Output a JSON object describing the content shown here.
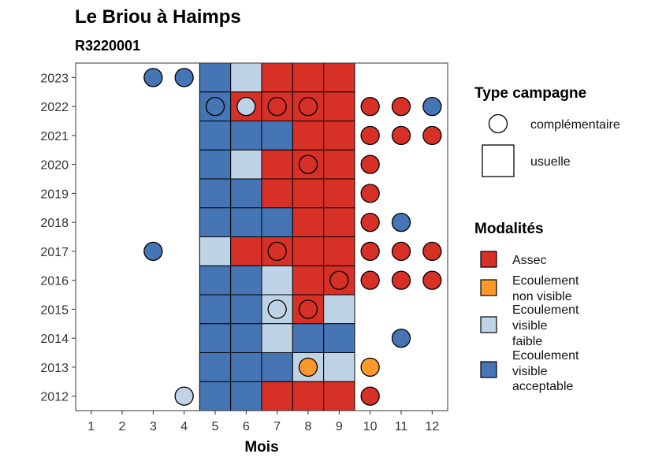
{
  "chart_data": {
    "type": "heatmap",
    "title": "Le Briou à Haimps",
    "subtitle": "R3220001",
    "xlabel": "Mois",
    "ylabel": "",
    "x_ticks": [
      "1",
      "2",
      "3",
      "4",
      "5",
      "6",
      "7",
      "8",
      "9",
      "10",
      "11",
      "12"
    ],
    "y_ticks": [
      "2012",
      "2013",
      "2014",
      "2015",
      "2016",
      "2017",
      "2018",
      "2019",
      "2020",
      "2021",
      "2022",
      "2023"
    ],
    "xlim": [
      0.5,
      12.5
    ],
    "ylim": [
      2011.5,
      2023.5
    ],
    "colors": {
      "Assec": "#d73027",
      "Ecoulement non visible": "#fe9929",
      "Ecoulement visible faible": "#bfd3e6",
      "Ecoulement visible acceptable": "#4575b4"
    },
    "legend": {
      "type_title": "Type campagne",
      "type_items": [
        {
          "label": "complémentaire",
          "shape": "circle"
        },
        {
          "label": "usuelle",
          "shape": "square"
        }
      ],
      "modalites_title": "Modalités",
      "modalites_items": [
        {
          "key": "Assec",
          "lines": [
            "Assec"
          ]
        },
        {
          "key": "Ecoulement non visible",
          "lines": [
            "Ecoulement",
            "non visible"
          ]
        },
        {
          "key": "Ecoulement visible faible",
          "lines": [
            "Ecoulement",
            "visible",
            "faible"
          ]
        },
        {
          "key": "Ecoulement visible acceptable",
          "lines": [
            "Ecoulement",
            "visible",
            "acceptable"
          ]
        }
      ]
    },
    "usuelle": [
      {
        "year": 2023,
        "month": 5,
        "modalite": "Ecoulement visible acceptable"
      },
      {
        "year": 2023,
        "month": 6,
        "modalite": "Ecoulement visible faible"
      },
      {
        "year": 2023,
        "month": 7,
        "modalite": "Assec"
      },
      {
        "year": 2023,
        "month": 8,
        "modalite": "Assec"
      },
      {
        "year": 2023,
        "month": 9,
        "modalite": "Assec"
      },
      {
        "year": 2022,
        "month": 5,
        "modalite": "Ecoulement visible acceptable"
      },
      {
        "year": 2022,
        "month": 6,
        "modalite": "Assec"
      },
      {
        "year": 2022,
        "month": 7,
        "modalite": "Assec"
      },
      {
        "year": 2022,
        "month": 8,
        "modalite": "Assec"
      },
      {
        "year": 2022,
        "month": 9,
        "modalite": "Assec"
      },
      {
        "year": 2021,
        "month": 5,
        "modalite": "Ecoulement visible acceptable"
      },
      {
        "year": 2021,
        "month": 6,
        "modalite": "Ecoulement visible acceptable"
      },
      {
        "year": 2021,
        "month": 7,
        "modalite": "Ecoulement visible acceptable"
      },
      {
        "year": 2021,
        "month": 8,
        "modalite": "Assec"
      },
      {
        "year": 2021,
        "month": 9,
        "modalite": "Assec"
      },
      {
        "year": 2020,
        "month": 5,
        "modalite": "Ecoulement visible acceptable"
      },
      {
        "year": 2020,
        "month": 6,
        "modalite": "Ecoulement visible faible"
      },
      {
        "year": 2020,
        "month": 7,
        "modalite": "Assec"
      },
      {
        "year": 2020,
        "month": 8,
        "modalite": "Assec"
      },
      {
        "year": 2020,
        "month": 9,
        "modalite": "Assec"
      },
      {
        "year": 2019,
        "month": 5,
        "modalite": "Ecoulement visible acceptable"
      },
      {
        "year": 2019,
        "month": 6,
        "modalite": "Ecoulement visible acceptable"
      },
      {
        "year": 2019,
        "month": 7,
        "modalite": "Assec"
      },
      {
        "year": 2019,
        "month": 8,
        "modalite": "Assec"
      },
      {
        "year": 2019,
        "month": 9,
        "modalite": "Assec"
      },
      {
        "year": 2018,
        "month": 5,
        "modalite": "Ecoulement visible acceptable"
      },
      {
        "year": 2018,
        "month": 6,
        "modalite": "Ecoulement visible acceptable"
      },
      {
        "year": 2018,
        "month": 7,
        "modalite": "Ecoulement visible acceptable"
      },
      {
        "year": 2018,
        "month": 8,
        "modalite": "Assec"
      },
      {
        "year": 2018,
        "month": 9,
        "modalite": "Assec"
      },
      {
        "year": 2017,
        "month": 5,
        "modalite": "Ecoulement visible faible"
      },
      {
        "year": 2017,
        "month": 6,
        "modalite": "Assec"
      },
      {
        "year": 2017,
        "month": 7,
        "modalite": "Assec"
      },
      {
        "year": 2017,
        "month": 8,
        "modalite": "Assec"
      },
      {
        "year": 2017,
        "month": 9,
        "modalite": "Assec"
      },
      {
        "year": 2016,
        "month": 5,
        "modalite": "Ecoulement visible acceptable"
      },
      {
        "year": 2016,
        "month": 6,
        "modalite": "Ecoulement visible acceptable"
      },
      {
        "year": 2016,
        "month": 7,
        "modalite": "Ecoulement visible faible"
      },
      {
        "year": 2016,
        "month": 8,
        "modalite": "Assec"
      },
      {
        "year": 2016,
        "month": 9,
        "modalite": "Assec"
      },
      {
        "year": 2015,
        "month": 5,
        "modalite": "Ecoulement visible acceptable"
      },
      {
        "year": 2015,
        "month": 6,
        "modalite": "Ecoulement visible acceptable"
      },
      {
        "year": 2015,
        "month": 7,
        "modalite": "Ecoulement visible faible"
      },
      {
        "year": 2015,
        "month": 8,
        "modalite": "Assec"
      },
      {
        "year": 2015,
        "month": 9,
        "modalite": "Ecoulement visible faible"
      },
      {
        "year": 2014,
        "month": 5,
        "modalite": "Ecoulement visible acceptable"
      },
      {
        "year": 2014,
        "month": 6,
        "modalite": "Ecoulement visible acceptable"
      },
      {
        "year": 2014,
        "month": 7,
        "modalite": "Ecoulement visible faible"
      },
      {
        "year": 2014,
        "month": 8,
        "modalite": "Ecoulement visible acceptable"
      },
      {
        "year": 2014,
        "month": 9,
        "modalite": "Ecoulement visible acceptable"
      },
      {
        "year": 2013,
        "month": 5,
        "modalite": "Ecoulement visible acceptable"
      },
      {
        "year": 2013,
        "month": 6,
        "modalite": "Ecoulement visible acceptable"
      },
      {
        "year": 2013,
        "month": 7,
        "modalite": "Ecoulement visible acceptable"
      },
      {
        "year": 2013,
        "month": 8,
        "modalite": "Ecoulement visible faible"
      },
      {
        "year": 2013,
        "month": 9,
        "modalite": "Ecoulement visible faible"
      },
      {
        "year": 2012,
        "month": 5,
        "modalite": "Ecoulement visible acceptable"
      },
      {
        "year": 2012,
        "month": 6,
        "modalite": "Ecoulement visible acceptable"
      },
      {
        "year": 2012,
        "month": 7,
        "modalite": "Assec"
      },
      {
        "year": 2012,
        "month": 8,
        "modalite": "Assec"
      },
      {
        "year": 2012,
        "month": 9,
        "modalite": "Assec"
      }
    ],
    "complementaire": [
      {
        "year": 2023,
        "month": 3,
        "modalite": "Ecoulement visible acceptable"
      },
      {
        "year": 2023,
        "month": 4,
        "modalite": "Ecoulement visible acceptable"
      },
      {
        "year": 2022,
        "month": 5,
        "modalite": "Ecoulement visible acceptable"
      },
      {
        "year": 2022,
        "month": 6,
        "modalite": "Ecoulement visible faible"
      },
      {
        "year": 2022,
        "month": 7,
        "modalite": "Assec"
      },
      {
        "year": 2022,
        "month": 8,
        "modalite": "Assec"
      },
      {
        "year": 2022,
        "month": 10,
        "modalite": "Assec"
      },
      {
        "year": 2022,
        "month": 11,
        "modalite": "Assec"
      },
      {
        "year": 2022,
        "month": 12,
        "modalite": "Ecoulement visible acceptable"
      },
      {
        "year": 2021,
        "month": 10,
        "modalite": "Assec"
      },
      {
        "year": 2021,
        "month": 11,
        "modalite": "Assec"
      },
      {
        "year": 2021,
        "month": 12,
        "modalite": "Assec"
      },
      {
        "year": 2020,
        "month": 8,
        "modalite": "Assec"
      },
      {
        "year": 2020,
        "month": 10,
        "modalite": "Assec"
      },
      {
        "year": 2019,
        "month": 10,
        "modalite": "Assec"
      },
      {
        "year": 2018,
        "month": 10,
        "modalite": "Assec"
      },
      {
        "year": 2018,
        "month": 11,
        "modalite": "Ecoulement visible acceptable"
      },
      {
        "year": 2017,
        "month": 3,
        "modalite": "Ecoulement visible acceptable"
      },
      {
        "year": 2017,
        "month": 7,
        "modalite": "Assec"
      },
      {
        "year": 2017,
        "month": 10,
        "modalite": "Assec"
      },
      {
        "year": 2017,
        "month": 11,
        "modalite": "Assec"
      },
      {
        "year": 2017,
        "month": 12,
        "modalite": "Assec"
      },
      {
        "year": 2016,
        "month": 9,
        "modalite": "Assec"
      },
      {
        "year": 2016,
        "month": 10,
        "modalite": "Assec"
      },
      {
        "year": 2016,
        "month": 11,
        "modalite": "Assec"
      },
      {
        "year": 2016,
        "month": 12,
        "modalite": "Assec"
      },
      {
        "year": 2015,
        "month": 7,
        "modalite": "Ecoulement visible faible"
      },
      {
        "year": 2015,
        "month": 8,
        "modalite": "Assec"
      },
      {
        "year": 2014,
        "month": 11,
        "modalite": "Ecoulement visible acceptable"
      },
      {
        "year": 2013,
        "month": 8,
        "modalite": "Ecoulement non visible"
      },
      {
        "year": 2013,
        "month": 10,
        "modalite": "Ecoulement non visible"
      },
      {
        "year": 2012,
        "month": 4,
        "modalite": "Ecoulement visible faible"
      },
      {
        "year": 2012,
        "month": 10,
        "modalite": "Assec"
      }
    ]
  }
}
